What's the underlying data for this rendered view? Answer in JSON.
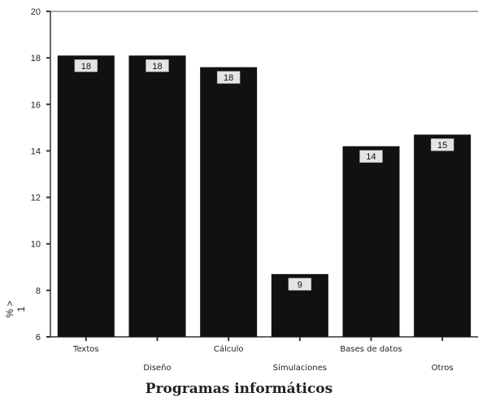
{
  "chart_data": {
    "type": "bar",
    "categories": [
      "Textos",
      "Diseño",
      "Cálculo",
      "Simulaciones",
      "Bases de datos",
      "Otros"
    ],
    "values": [
      18.1,
      18.1,
      17.6,
      8.7,
      14.2,
      14.7
    ],
    "data_labels": [
      "18",
      "18",
      "18",
      "9",
      "14",
      "15"
    ],
    "xlabel": "Programas informáticos",
    "ylabel": "% > 1",
    "ylim": [
      6,
      20
    ],
    "yticks": [
      "6",
      "8",
      "10",
      "12",
      "14",
      "16",
      "18",
      "20"
    ],
    "grid": false,
    "bar_color": "#111111",
    "label_box_color": "#e4e4e4"
  }
}
